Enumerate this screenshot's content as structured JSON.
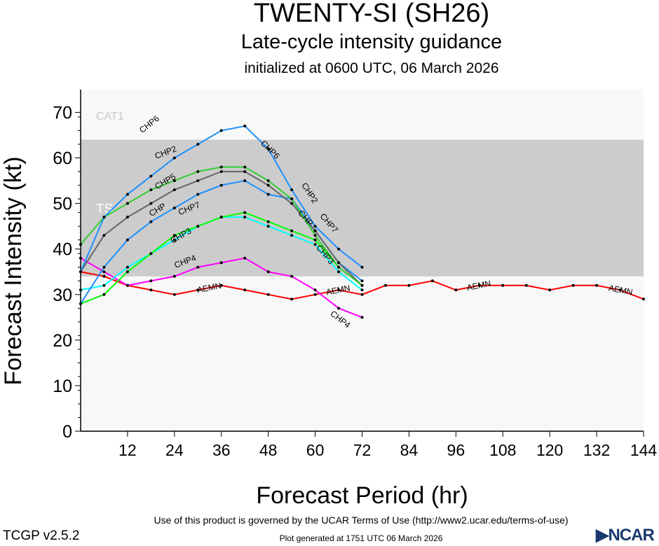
{
  "header": {
    "title": "TWENTY-SI (SH26)",
    "subtitle": "Late-cycle intensity guidance",
    "init": "initialized at 0600 UTC, 06 March 2026"
  },
  "footer": {
    "terms": "Use of this product is governed by the UCAR Terms of Use (http://www2.ucar.edu/terms-of-use)",
    "generated": "Plot generated at 1751 UTC   06 March 2026",
    "version": "TCGP v2.5.2",
    "logo": "NCAR"
  },
  "chart_data": {
    "type": "line",
    "title": "TWENTY-SI (SH26)",
    "xlabel": "Forecast Period (hr)",
    "ylabel": "Forecast Intensity (kt)",
    "xlim": [
      0,
      144
    ],
    "ylim": [
      0,
      75
    ],
    "xticks": [
      12,
      24,
      36,
      48,
      60,
      72,
      84,
      96,
      108,
      120,
      132,
      144
    ],
    "yticks": [
      0,
      10,
      20,
      30,
      40,
      50,
      60,
      70
    ],
    "bands": [
      {
        "label": "TS",
        "from": 34,
        "to": 64,
        "color": "#cccccc"
      },
      {
        "label": "CAT1",
        "from": 64,
        "to": 75,
        "color": "#f8f8f8"
      }
    ],
    "series": [
      {
        "name": "AEMN",
        "color": "#ff0000",
        "x": [
          0,
          6,
          12,
          18,
          24,
          30,
          36,
          42,
          48,
          54,
          60,
          66,
          72,
          78,
          84,
          90,
          96,
          102,
          108,
          114,
          120,
          126,
          132,
          138,
          144
        ],
        "values": [
          35,
          34,
          32,
          31,
          30,
          31,
          32,
          31,
          30,
          29,
          30,
          31,
          30,
          32,
          32,
          33,
          31,
          32,
          32,
          32,
          31,
          32,
          32,
          31,
          29
        ],
        "labels": [
          33,
          66,
          102,
          138
        ]
      },
      {
        "name": "CHP4",
        "color": "#ff00ff",
        "x": [
          0,
          6,
          12,
          18,
          24,
          30,
          36,
          42,
          48,
          54,
          60,
          66,
          72
        ],
        "values": [
          38,
          35,
          32,
          33,
          34,
          36,
          37,
          38,
          35,
          34,
          31,
          27,
          25
        ],
        "labels": [
          27,
          66
        ]
      },
      {
        "name": "CHP3",
        "color": "#00ffff",
        "x": [
          0,
          6,
          12,
          18,
          24,
          30,
          36,
          42,
          48,
          54,
          60,
          66,
          72
        ],
        "values": [
          31,
          32,
          36,
          39,
          42,
          45,
          47,
          47,
          45,
          43,
          41,
          35,
          31
        ],
        "labels": [
          26,
          62
        ]
      },
      {
        "name": "CHP7",
        "color": "#00ff00",
        "x": [
          0,
          6,
          12,
          18,
          24,
          30,
          36,
          42,
          48,
          54,
          60,
          66,
          72
        ],
        "values": [
          28,
          30,
          35,
          39,
          43,
          45,
          47,
          48,
          46,
          44,
          42,
          36,
          32
        ],
        "labels": [
          28,
          63
        ]
      },
      {
        "name": "CHP5",
        "color": "#1e90ff",
        "x": [
          0,
          6,
          12,
          18,
          24,
          30,
          36,
          42,
          48,
          54,
          60,
          66,
          72
        ],
        "values": [
          28,
          36,
          42,
          46,
          49,
          52,
          54,
          55,
          52,
          51,
          44,
          37,
          33
        ],
        "labels": [
          22
        ]
      },
      {
        "name": "CHP",
        "color": "#666666",
        "x": [
          0,
          6,
          12,
          18,
          24,
          30,
          36,
          42,
          48,
          54,
          60,
          66,
          72
        ],
        "values": [
          35,
          43,
          47,
          50,
          53,
          55,
          57,
          57,
          54,
          50,
          44,
          37,
          32
        ],
        "labels": [
          20,
          57
        ]
      },
      {
        "name": "CHP2",
        "color": "#32cd32",
        "x": [
          0,
          6,
          12,
          18,
          24,
          30,
          36,
          42,
          48,
          54,
          60,
          66,
          72
        ],
        "values": [
          41,
          47,
          50,
          53,
          55,
          57,
          58,
          58,
          55,
          51,
          43,
          36,
          32
        ],
        "labels": [
          22,
          58
        ]
      },
      {
        "name": "CHP6",
        "color": "#1e90ff",
        "x": [
          0,
          6,
          12,
          18,
          24,
          30,
          36,
          42,
          48,
          54,
          60,
          66,
          72
        ],
        "values": [
          35,
          47,
          52,
          56,
          60,
          63,
          66,
          67,
          62,
          53,
          45,
          40,
          36
        ],
        "labels": [
          18,
          48
        ]
      }
    ]
  }
}
